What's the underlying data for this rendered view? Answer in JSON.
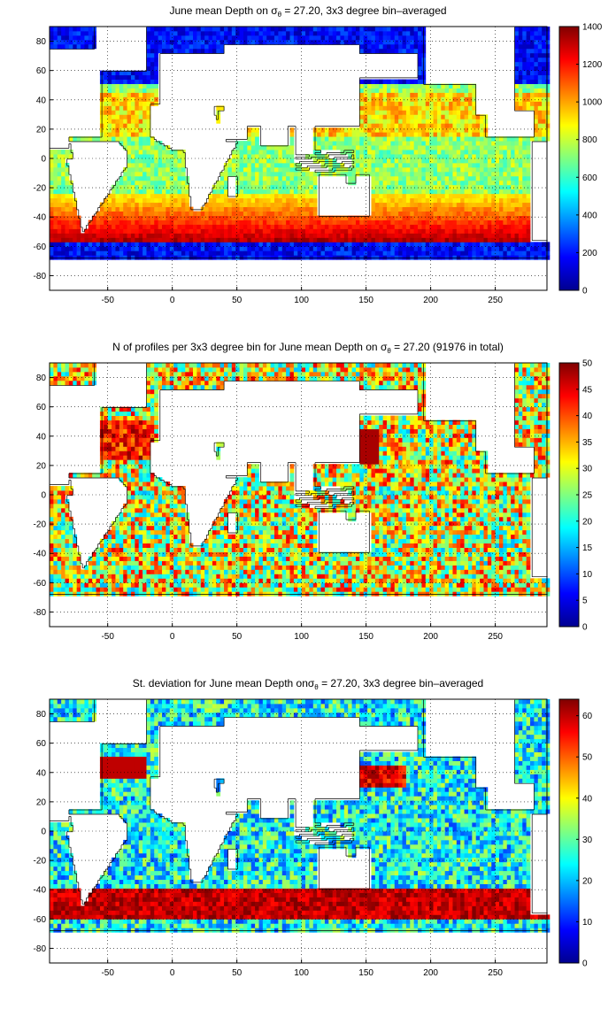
{
  "figure": {
    "panels": [
      {
        "title_pre": "June mean Depth on ",
        "title_post": " = 27.20, 3x3 degree bin–averaged",
        "colorbar": {
          "min": 0,
          "max": 1400,
          "ticks": [
            0,
            200,
            400,
            600,
            800,
            1000,
            1200,
            1400
          ]
        },
        "field": "depth",
        "value_range": [
          0,
          1400
        ]
      },
      {
        "title_pre": "N of profiles per 3x3 degree bin for June mean Depth on ",
        "title_post": " = 27.20 (91976 in total)",
        "colorbar": {
          "min": 0,
          "max": 50,
          "ticks": [
            0,
            5,
            10,
            15,
            20,
            25,
            30,
            35,
            40,
            45,
            50
          ]
        },
        "field": "count",
        "value_range": [
          0,
          50
        ]
      },
      {
        "title_pre": "St. deviation for June mean Depth on",
        "title_post": " = 27.20, 3x3 degree bin–averaged",
        "colorbar": {
          "min": 0,
          "max": 64,
          "ticks": [
            0,
            10,
            20,
            30,
            40,
            50,
            60
          ]
        },
        "field": "std",
        "value_range": [
          0,
          64
        ]
      }
    ],
    "sigma_symbol": "σ",
    "sigma_sub": "θ",
    "x_ticks": [
      -50,
      0,
      50,
      100,
      150,
      200,
      250
    ],
    "y_ticks": [
      -80,
      -60,
      -40,
      -20,
      0,
      20,
      40,
      60,
      80
    ],
    "x_range": [
      -95,
      290
    ],
    "y_range": [
      -90,
      90
    ],
    "grid": "dotted",
    "colormap": "jet"
  }
}
